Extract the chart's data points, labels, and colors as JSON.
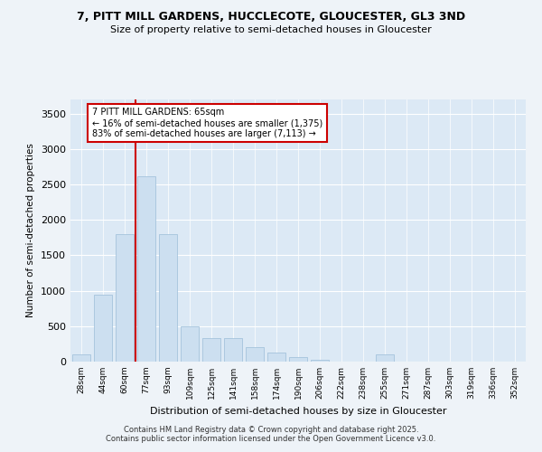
{
  "title1": "7, PITT MILL GARDENS, HUCCLECOTE, GLOUCESTER, GL3 3ND",
  "title2": "Size of property relative to semi-detached houses in Gloucester",
  "xlabel": "Distribution of semi-detached houses by size in Gloucester",
  "ylabel": "Number of semi-detached properties",
  "categories": [
    "28sqm",
    "44sqm",
    "60sqm",
    "77sqm",
    "93sqm",
    "109sqm",
    "125sqm",
    "141sqm",
    "158sqm",
    "174sqm",
    "190sqm",
    "206sqm",
    "222sqm",
    "238sqm",
    "255sqm",
    "271sqm",
    "287sqm",
    "303sqm",
    "319sqm",
    "336sqm",
    "352sqm"
  ],
  "values": [
    100,
    950,
    1800,
    2620,
    1800,
    500,
    330,
    330,
    200,
    130,
    60,
    30,
    5,
    0,
    100,
    0,
    0,
    0,
    0,
    0,
    0
  ],
  "bar_color": "#ccdff0",
  "bar_edge_color": "#9bbdd8",
  "vline_color": "#cc0000",
  "vline_x": 2.5,
  "annotation_text": "7 PITT MILL GARDENS: 65sqm\n← 16% of semi-detached houses are smaller (1,375)\n83% of semi-detached houses are larger (7,113) →",
  "annotation_box_color": "#ffffff",
  "annotation_box_edge": "#cc0000",
  "footer1": "Contains HM Land Registry data © Crown copyright and database right 2025.",
  "footer2": "Contains public sector information licensed under the Open Government Licence v3.0.",
  "ylim": [
    0,
    3700
  ],
  "yticks": [
    0,
    500,
    1000,
    1500,
    2000,
    2500,
    3000,
    3500
  ],
  "background_color": "#eef3f8",
  "plot_bg_color": "#dce9f5"
}
